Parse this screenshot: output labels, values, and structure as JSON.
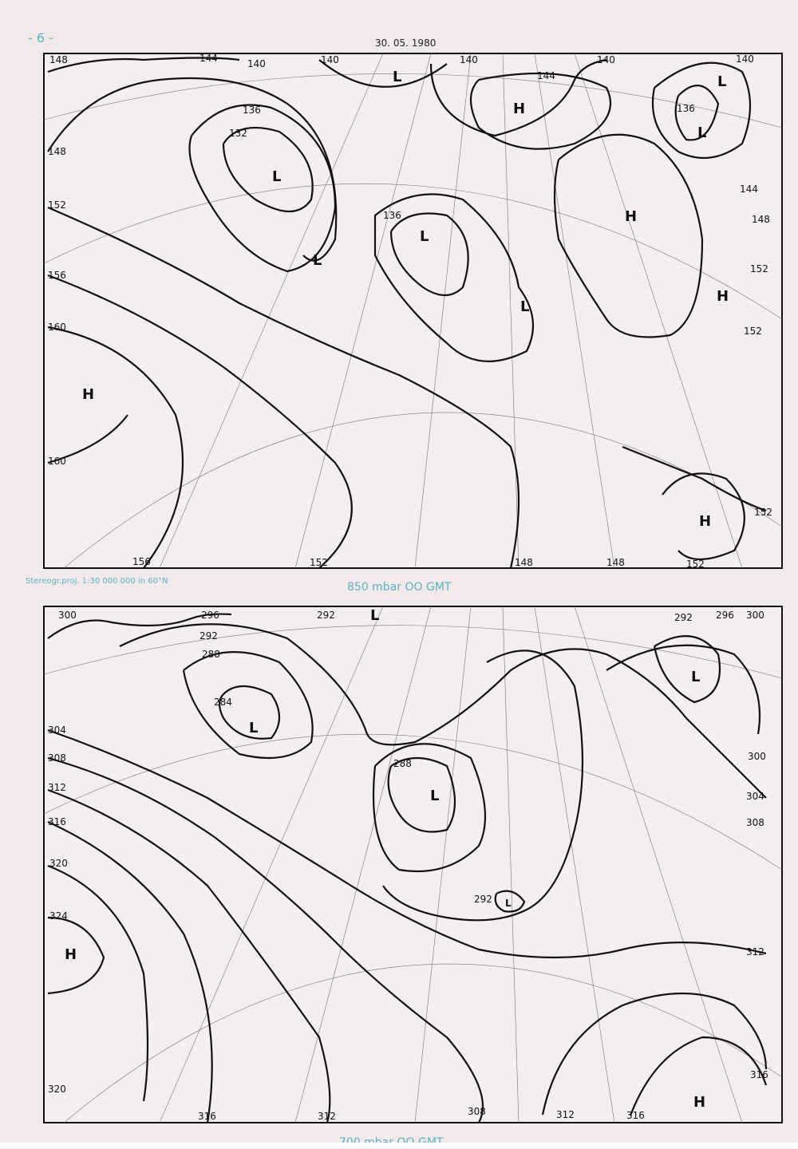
{
  "page_number": "- 6 -",
  "date": "30. 05. 1980",
  "projection_note": "Stereogr.proj. 1:30 000 000 in 60°N",
  "maps": [
    {
      "level_label": "850 mbar  OO GMT",
      "contour_labels": [
        "148",
        "144",
        "140",
        "140",
        "140",
        "144",
        "140",
        "140",
        "136",
        "132",
        "148",
        "152",
        "156",
        "160",
        "160",
        "136",
        "136",
        "144",
        "148",
        "152",
        "152",
        "152",
        "156",
        "152",
        "148",
        "148",
        "152"
      ],
      "pressure_centers": [
        "L",
        "H",
        "L",
        "L",
        "L",
        "L",
        "L",
        "H",
        "H",
        "L",
        "H",
        "H"
      ]
    },
    {
      "level_label": "700 mbar  OO GMT",
      "contour_labels": [
        "300",
        "296",
        "292",
        "292",
        "296",
        "300",
        "292",
        "288",
        "284",
        "304",
        "308",
        "312",
        "316",
        "320",
        "324",
        "320",
        "288",
        "292",
        "300",
        "304",
        "308",
        "312",
        "316",
        "316",
        "312",
        "308",
        "312",
        "316"
      ],
      "pressure_centers": [
        "L",
        "L",
        "L",
        "L",
        "H",
        "H",
        "L"
      ]
    }
  ],
  "colors": {
    "caption": "#5bb3c3",
    "ink": "#111111",
    "paper": "#f2e9ea"
  }
}
